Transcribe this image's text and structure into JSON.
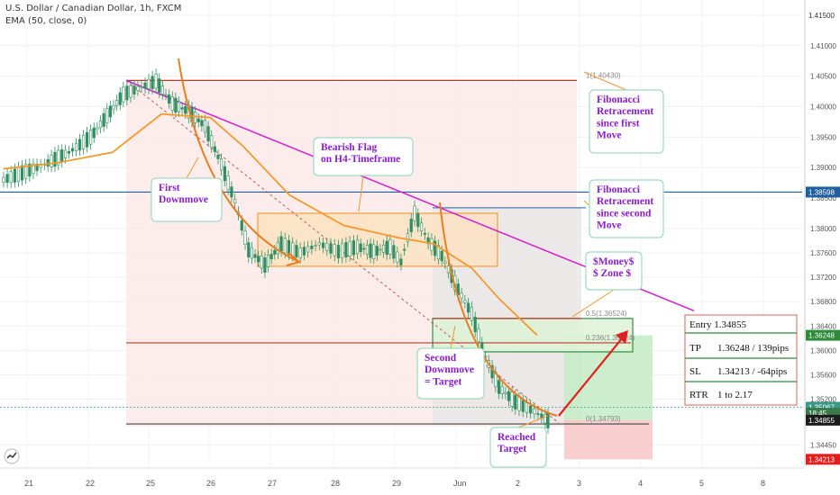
{
  "header": {
    "symbol_line": "U.S. Dollar / Canadian Dollar, 1h, FXCM",
    "indicator_line": "EMA (50, close, 0)"
  },
  "colors": {
    "candle": "#2f8f5f",
    "ema": "#f39a2b",
    "trendline": "#d81ccf",
    "fib_line": "#c0392b",
    "flag": "#f0962a",
    "callout_border": "#9ed9c4",
    "callout_text": "#8a1bd1",
    "callout_arrow": "#f0962a",
    "target_arrow": "#e02020",
    "target_zone": "#c6ecc6",
    "stop_zone": "#f7c9c9",
    "money_zone": "#2e8b3a",
    "horizontal_support": "#1f5fa0"
  },
  "chart_data": {
    "type": "candlestick",
    "symbol": "USD/CAD",
    "timeframe": "1h",
    "x_ticks": [
      "21",
      "22",
      "25",
      "26",
      "27",
      "28",
      "29",
      "Jun",
      "2",
      "3",
      "4",
      "5",
      "8"
    ],
    "y_ticks": [
      1.415,
      1.41,
      1.405,
      1.4,
      1.395,
      1.39,
      1.385,
      1.38,
      1.376,
      1.372,
      1.368,
      1.364,
      1.36,
      1.356,
      1.352,
      1.3445
    ],
    "ylim": [
      1.341,
      1.4175
    ],
    "price_path": [
      [
        0,
        1.388
      ],
      [
        1.5,
        1.3905
      ],
      [
        2.4,
        1.3925
      ],
      [
        3.2,
        1.395
      ],
      [
        3.8,
        1.3985
      ],
      [
        4.4,
        1.402
      ],
      [
        5.6,
        1.4042
      ],
      [
        6.2,
        1.4005
      ],
      [
        6.8,
        1.3992
      ],
      [
        7.4,
        1.3968
      ],
      [
        8.0,
        1.3905
      ],
      [
        8.5,
        1.3845
      ],
      [
        9.0,
        1.3765
      ],
      [
        9.6,
        1.374
      ],
      [
        10.2,
        1.3775
      ],
      [
        10.9,
        1.376
      ],
      [
        11.6,
        1.3775
      ],
      [
        12.3,
        1.3762
      ],
      [
        13.0,
        1.377
      ],
      [
        13.6,
        1.3762
      ],
      [
        14.2,
        1.377
      ],
      [
        14.6,
        1.3745
      ],
      [
        15.1,
        1.3825
      ],
      [
        15.6,
        1.378
      ],
      [
        16.1,
        1.3755
      ],
      [
        16.7,
        1.37
      ],
      [
        17.2,
        1.366
      ],
      [
        17.7,
        1.359
      ],
      [
        18.2,
        1.354
      ],
      [
        18.8,
        1.3515
      ],
      [
        19.5,
        1.35
      ],
      [
        19.9,
        1.3488
      ],
      [
        20.1,
        1.3481
      ]
    ],
    "ema_path": [
      [
        0,
        1.3898
      ],
      [
        2.0,
        1.3908
      ],
      [
        4.0,
        1.3925
      ],
      [
        5.8,
        1.3988
      ],
      [
        7.6,
        1.3982
      ],
      [
        8.8,
        1.3935
      ],
      [
        10.5,
        1.3855
      ],
      [
        12.5,
        1.3805
      ],
      [
        14.5,
        1.3785
      ],
      [
        15.8,
        1.3775
      ],
      [
        17.2,
        1.3735
      ],
      [
        18.2,
        1.3685
      ],
      [
        19.6,
        1.3625
      ]
    ],
    "horizontal_levels": [
      {
        "price": 1.38598,
        "label": "1.38598"
      },
      {
        "price": 1.35067,
        "label": "1.35067"
      }
    ],
    "fibonacci": [
      {
        "label": "1(1.40430)",
        "price": 1.4043
      },
      {
        "label": "0.5(1.36524)",
        "price": 1.36524
      },
      {
        "label": "0.236(1.36124)",
        "price": 1.36124
      },
      {
        "label": "0(1.34793)",
        "price": 1.34793
      }
    ],
    "price_tags": [
      {
        "label": "1.41500",
        "price": 1.415,
        "color": "#ffffff",
        "text": "#333333"
      },
      {
        "label": "1.38598",
        "price": 1.38598,
        "color": "#1f5fa0",
        "text": "#ffffff"
      },
      {
        "label": "1.36248",
        "price": 1.36248,
        "color": "#2e8b3a",
        "text": "#ffffff"
      },
      {
        "label": "1.35067",
        "price": 1.35067,
        "color": "#3a9a8a",
        "text": "#ffffff"
      },
      {
        "label": "18:45",
        "price": 1.3497,
        "color": "#3a7a4a",
        "text": "#ffffff"
      },
      {
        "label": "1.34855",
        "price": 1.34855,
        "color": "#1d1d1d",
        "text": "#ffffff"
      },
      {
        "label": "1.34213",
        "price": 1.34213,
        "color": "#e41d1d",
        "text": "#ffffff"
      }
    ],
    "annotations": [
      {
        "text": "First\nDownmove"
      },
      {
        "text": "Bearish Flag\non H4-Timeframe"
      },
      {
        "text": "Fibonacci\nRetracement\nsince first\nMove"
      },
      {
        "text": "Fibonacci\nRetracement\nsince second\nMove"
      },
      {
        "text": "$Money$\n$ Zone $"
      },
      {
        "text": "Second\nDownmove\n= Target"
      },
      {
        "text": "Reached\nTarget"
      }
    ],
    "trade": {
      "entry": "Entry 1.34855",
      "tp_label": "TP",
      "tp_value": "1.36248 / 139pips",
      "sl_label": "SL",
      "sl_value": "1.34213 / -64pips",
      "rtr_label": "RTR",
      "rtr_value": "1 to 2.17"
    }
  }
}
